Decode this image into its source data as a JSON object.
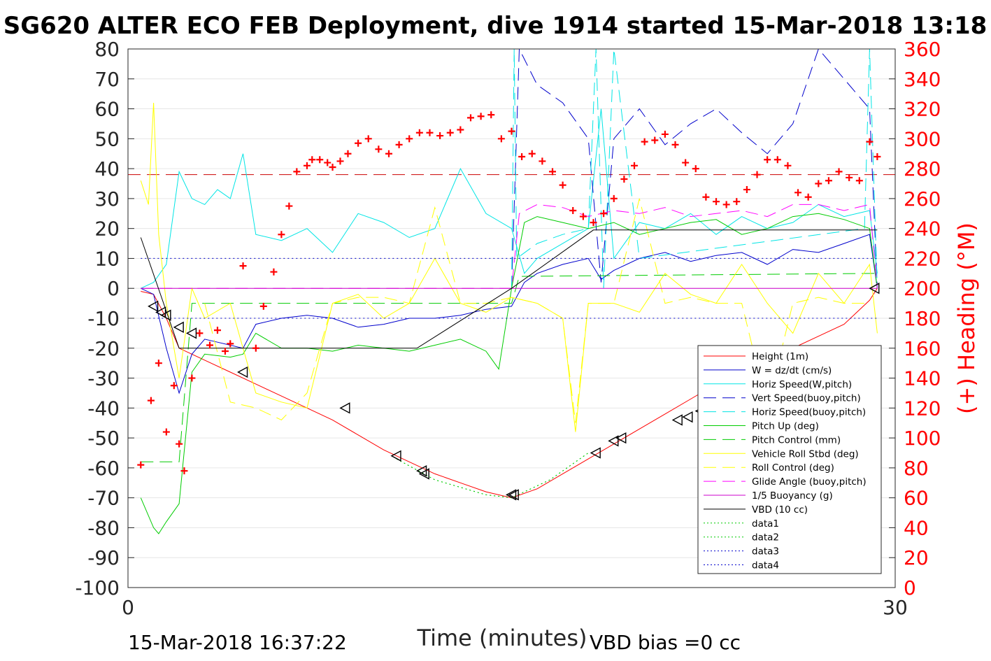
{
  "title": "SG620 ALTER ECO FEB Deployment, dive 1914 started 15-Mar-2018 13:18",
  "footer": {
    "start_time": "15-Mar-2018 16:37:22",
    "vbd_bias": "VBD bias =0 cc"
  },
  "chart_data": {
    "type": "line",
    "xlabel": "Time (minutes)",
    "ylabel_right": "(+) Heading (°M)",
    "xlim": [
      0,
      30
    ],
    "ylim_left": [
      -100,
      80
    ],
    "ylim_right": [
      0,
      360
    ],
    "x_ticks": [
      "0",
      "30"
    ],
    "y_ticks_left": [
      "80",
      "70",
      "60",
      "50",
      "40",
      "30",
      "20",
      "10",
      "0",
      "-10",
      "-20",
      "-30",
      "-40",
      "-50",
      "-60",
      "-70",
      "-80",
      "-90",
      "-100"
    ],
    "y_ticks_right": [
      "360",
      "340",
      "320",
      "300",
      "280",
      "260",
      "240",
      "220",
      "200",
      "180",
      "160",
      "140",
      "120",
      "100",
      "80",
      "60",
      "40",
      "20",
      "0"
    ],
    "grid": true,
    "legend_position": "right",
    "series": [
      {
        "name": "Height (1m)",
        "color": "#ff0000",
        "style": "solid",
        "x": [
          0.5,
          1,
          1.5,
          2,
          3,
          4,
          5,
          6,
          7,
          8,
          9,
          10,
          11,
          12,
          13,
          14,
          15,
          16,
          17,
          18,
          19,
          20,
          21,
          22,
          23,
          24,
          25,
          26,
          27,
          28,
          29,
          29.3
        ],
        "y": [
          -1,
          -2,
          -10,
          -20,
          -24,
          -28,
          -32,
          -36,
          -40,
          -44,
          -49,
          -54,
          -58,
          -62,
          -65,
          -68,
          -70,
          -67,
          -62,
          -57,
          -52,
          -47,
          -42,
          -37,
          -32,
          -28,
          -24,
          -20,
          -16,
          -12,
          -4,
          0
        ]
      },
      {
        "name": "W = dz/dt (cm/s)",
        "color": "#0000cc",
        "style": "solid",
        "x": [
          0.5,
          1,
          1.5,
          2,
          2.5,
          3,
          3.5,
          4,
          4.5,
          5,
          6,
          7,
          8,
          9,
          10,
          11,
          12,
          13,
          14,
          15,
          15.5,
          16,
          17,
          18,
          18.5,
          19,
          20,
          21,
          22,
          23,
          24,
          25,
          26,
          27,
          28,
          29,
          29.3
        ],
        "y": [
          0,
          -2,
          -20,
          -35,
          -22,
          -17,
          -18,
          -19,
          -20,
          -12,
          -10,
          -9,
          -10,
          -13,
          -12,
          -10,
          -10,
          -9,
          -7,
          -6,
          2,
          5,
          8,
          10,
          3,
          6,
          10,
          12,
          9,
          11,
          12,
          8,
          13,
          12,
          15,
          18,
          0
        ]
      },
      {
        "name": "Horiz Speed(W,pitch)",
        "color": "#00e5e5",
        "style": "solid",
        "x": [
          0.5,
          1,
          1.5,
          2,
          2.5,
          3,
          3.5,
          4,
          4.5,
          5,
          6,
          7,
          8,
          9,
          10,
          11,
          12,
          13,
          14,
          15,
          15.5,
          16,
          17,
          18,
          18.5,
          19,
          20,
          21,
          22,
          23,
          24,
          25,
          26,
          27,
          28,
          29,
          29.3
        ],
        "y": [
          0,
          2,
          8,
          39,
          30,
          28,
          33,
          30,
          45,
          18,
          16,
          20,
          12,
          25,
          22,
          17,
          20,
          40,
          25,
          20,
          5,
          10,
          15,
          20,
          60,
          10,
          22,
          20,
          25,
          18,
          24,
          20,
          22,
          28,
          24,
          26,
          5
        ]
      },
      {
        "name": "Vert Speed(buoy,pitch)",
        "color": "#0000cc",
        "style": "dashed",
        "x": [
          15,
          15.3,
          16,
          17,
          18,
          18.5,
          19,
          20,
          21,
          22,
          23,
          24,
          25,
          26,
          27,
          28,
          29,
          29.3
        ],
        "y": [
          0,
          80,
          68,
          62,
          50,
          2,
          50,
          60,
          48,
          55,
          60,
          52,
          45,
          55,
          80,
          70,
          60,
          0
        ]
      },
      {
        "name": "Horiz Speed(buoy,pitch)",
        "color": "#00e5e5",
        "style": "dashed",
        "x": [
          15,
          15.1,
          15.2,
          16,
          17,
          18,
          18.3,
          18.6,
          19,
          20,
          28.8,
          29,
          29.3
        ],
        "y": [
          0,
          80,
          10,
          15,
          18,
          20,
          80,
          0,
          80,
          10,
          20,
          80,
          0
        ]
      },
      {
        "name": "Pitch Up (deg)",
        "color": "#00cc00",
        "style": "solid",
        "x": [
          0.5,
          1,
          1.2,
          1.5,
          2,
          2.5,
          3,
          4,
          4.5,
          5,
          6,
          7,
          8,
          9,
          10,
          11,
          12,
          13,
          14,
          14.5,
          15,
          15.5,
          16,
          17,
          18,
          19,
          20,
          21,
          22,
          23,
          24,
          25,
          26,
          27,
          28,
          29,
          29.3
        ],
        "y": [
          -70,
          -80,
          -82,
          -78,
          -72,
          -28,
          -22,
          -23,
          -22,
          -15,
          -20,
          -20,
          -21,
          -19,
          -20,
          -21,
          -19,
          -17,
          -21,
          -27,
          0,
          22,
          24,
          22,
          20,
          22,
          18,
          20,
          22,
          23,
          18,
          20,
          24,
          25,
          23,
          20,
          0
        ]
      },
      {
        "name": "Pitch Control (mm)",
        "color": "#00cc00",
        "style": "dashed",
        "x": [
          0.5,
          2,
          2.5,
          6,
          12,
          15,
          15.3,
          29.3
        ],
        "y": [
          -58,
          -58,
          -5,
          -5,
          -5,
          -5,
          4,
          5
        ]
      },
      {
        "name": "Vehicle Roll Stbd (deg)",
        "color": "#ffff00",
        "style": "solid",
        "x": [
          0.5,
          0.8,
          1,
          1.2,
          1.5,
          2,
          2.5,
          3,
          4,
          4.5,
          5,
          6,
          7,
          8,
          9,
          10,
          11,
          12,
          13,
          14,
          15,
          16,
          17,
          17.5,
          18,
          19,
          20,
          21,
          22,
          23,
          24,
          25,
          26,
          27,
          28,
          29,
          29.3
        ],
        "y": [
          36,
          28,
          62,
          18,
          -5,
          -30,
          0,
          -10,
          -5,
          -20,
          -35,
          -38,
          -40,
          -5,
          -2,
          -10,
          -5,
          10,
          -5,
          -8,
          -3,
          -5,
          -10,
          -48,
          -5,
          -5,
          -8,
          5,
          -2,
          -5,
          8,
          -5,
          -15,
          5,
          -5,
          8,
          -15
        ]
      },
      {
        "name": "Roll Control (deg)",
        "color": "#ffff00",
        "style": "dashed",
        "x": [
          3,
          4,
          5,
          6,
          7,
          8,
          9,
          10,
          11,
          12,
          13,
          14,
          15,
          16,
          17,
          17.5,
          18,
          19,
          20,
          21,
          22,
          23,
          24,
          25,
          26,
          27,
          28,
          29
        ],
        "y": [
          -5,
          -38,
          -40,
          -44,
          -35,
          -5,
          -3,
          -3,
          -5,
          27,
          -5,
          -5,
          -3,
          -5,
          -10,
          -45,
          -5,
          -5,
          30,
          -5,
          -3,
          -5,
          -5,
          -40,
          -5,
          -3,
          -5,
          -5
        ]
      },
      {
        "name": "Glide Angle (buoy,pitch)",
        "color": "#ff00ff",
        "style": "dashed",
        "x": [
          0.5,
          15,
          15.3,
          16,
          17,
          18,
          19,
          20,
          21,
          22,
          23,
          24,
          25,
          26,
          27,
          28,
          29,
          29.3
        ],
        "y": [
          0,
          0,
          25,
          28,
          27,
          24,
          26,
          25,
          27,
          24,
          25,
          26,
          24,
          28,
          28,
          26,
          28,
          0
        ]
      },
      {
        "name": "1/5 Buoyancy (g)",
        "color": "#cc00cc",
        "style": "solid",
        "x": [
          0.5,
          29.3
        ],
        "y": [
          0,
          0
        ]
      },
      {
        "name": "VBD (10 cc)",
        "color": "#000000",
        "style": "solid",
        "x": [
          0.5,
          2,
          11.3,
          15,
          18.2,
          29.3
        ],
        "y": [
          17,
          -20,
          -20,
          0,
          19.5,
          19.5
        ]
      },
      {
        "name": "data1",
        "color": "#00cc00",
        "style": "dotted",
        "x": [
          10.5,
          12,
          14,
          15,
          16.5,
          18
        ],
        "y": [
          -57,
          -64,
          -69,
          -70,
          -64,
          -55
        ]
      },
      {
        "name": "data2",
        "color": "#00cc00",
        "style": "dotted",
        "x": [
          10.5,
          12,
          14,
          15,
          16.5,
          18
        ],
        "y": [
          -57,
          -64,
          -69,
          -70,
          -64,
          -55
        ]
      },
      {
        "name": "data3",
        "color": "#0000cc",
        "style": "dotted",
        "x": [
          0.5,
          29.3
        ],
        "y": [
          10,
          10
        ]
      },
      {
        "name": "data4",
        "color": "#0000cc",
        "style": "dotted",
        "x": [
          0.5,
          29.3
        ],
        "y": [
          -10,
          -10
        ]
      }
    ],
    "heading_reference": {
      "value": 276,
      "color": "#cc0000",
      "style": "dashed"
    },
    "heading_markers": {
      "color": "#ff0000",
      "marker": "+",
      "x": [
        0.5,
        0.9,
        1.2,
        1.5,
        1.8,
        2,
        2.2,
        2.5,
        2.8,
        3.2,
        3.5,
        3.8,
        4,
        4.5,
        5,
        5.3,
        5.7,
        6,
        6.3,
        6.6,
        7,
        7.2,
        7.5,
        7.8,
        8,
        8.3,
        8.6,
        9,
        9.4,
        9.8,
        10.2,
        10.6,
        11,
        11.4,
        11.8,
        12.2,
        12.6,
        13,
        13.4,
        13.8,
        14.2,
        14.6,
        15,
        15.4,
        15.8,
        16.2,
        16.6,
        17,
        17.4,
        17.8,
        18.2,
        18.6,
        19,
        19.4,
        19.8,
        20.2,
        20.6,
        21,
        21.4,
        21.8,
        22.2,
        22.6,
        23,
        23.4,
        23.8,
        24.2,
        24.6,
        25,
        25.4,
        25.8,
        26.2,
        26.6,
        27,
        27.4,
        27.8,
        28.2,
        28.6,
        29,
        29.3
      ],
      "y": [
        82,
        125,
        150,
        104,
        135,
        96,
        78,
        140,
        170,
        162,
        172,
        158,
        163,
        215,
        160,
        188,
        211,
        236,
        255,
        278,
        282,
        286,
        286,
        284,
        281,
        285,
        290,
        297,
        300,
        293,
        290,
        296,
        300,
        304,
        304,
        302,
        304,
        306,
        314,
        315,
        316,
        300,
        305,
        288,
        290,
        285,
        278,
        269,
        252,
        248,
        244,
        250,
        260,
        273,
        282,
        298,
        299,
        303,
        296,
        284,
        280,
        261,
        258,
        256,
        258,
        266,
        276,
        286,
        286,
        282,
        264,
        261,
        270,
        272,
        278,
        274,
        272,
        298,
        288
      ]
    },
    "direction_markers": {
      "color": "#000000",
      "marker": "triangle-left",
      "x": [
        1,
        1.3,
        1.5,
        2,
        2.5,
        4.5,
        8.5,
        10.5,
        11.5,
        11.6,
        15,
        15.1,
        18.3,
        19,
        19.3,
        21.5,
        21.9,
        22.4,
        22.7,
        26.2,
        26.5,
        26.8,
        29.2
      ],
      "y": [
        -6,
        -8,
        -9,
        -13,
        -15,
        -28,
        -40,
        -56,
        -61,
        -62,
        -69,
        -69,
        -55,
        -51,
        -50,
        -44,
        -43,
        -41,
        -40,
        -24,
        -23,
        -22,
        0
      ]
    }
  },
  "legend": {
    "entries": [
      "Height (1m)",
      "W = dz/dt (cm/s)",
      "Horiz Speed(W,pitch)",
      "Vert Speed(buoy,pitch)",
      "Horiz Speed(buoy,pitch)",
      "Pitch Up (deg)",
      "Pitch Control (mm)",
      "Vehicle Roll Stbd (deg)",
      "Roll Control (deg)",
      "Glide Angle (buoy,pitch)",
      "1/5 Buoyancy (g)",
      "VBD (10 cc)",
      "data1",
      "data2",
      "data3",
      "data4"
    ]
  }
}
